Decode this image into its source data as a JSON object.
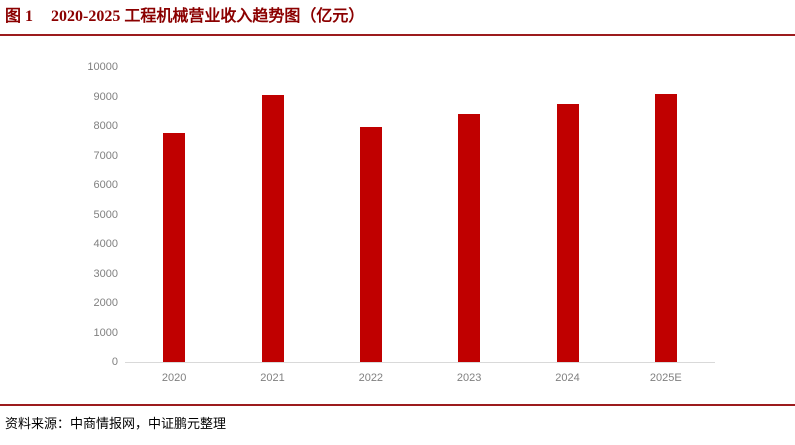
{
  "header": {
    "figure_label": "图 1",
    "title": "2020-2025 工程机械营业收入趋势图（亿元）",
    "title_color": "#8B0000",
    "rule_color": "#9C1B1D"
  },
  "chart_data": {
    "type": "bar",
    "title": "2020-2025 工程机械营业收入趋势图（亿元）",
    "unit": "亿元",
    "categories": [
      "2020",
      "2021",
      "2022",
      "2023",
      "2024",
      "2025E"
    ],
    "values": [
      7750,
      9050,
      7950,
      8400,
      8750,
      9100
    ],
    "ylim": [
      0,
      10000
    ],
    "yticks": [
      0,
      1000,
      2000,
      3000,
      4000,
      5000,
      6000,
      7000,
      8000,
      9000,
      10000
    ],
    "xlabel": "",
    "ylabel": "",
    "grid": false,
    "legend": false,
    "colors": {
      "bar": "#C00000",
      "axis_line": "#D9D9D9",
      "tick_label": "#808080"
    }
  },
  "footer": {
    "source_text": "资料来源：中商情报网，中证鹏元整理",
    "rule_color": "#9C1B1D"
  }
}
